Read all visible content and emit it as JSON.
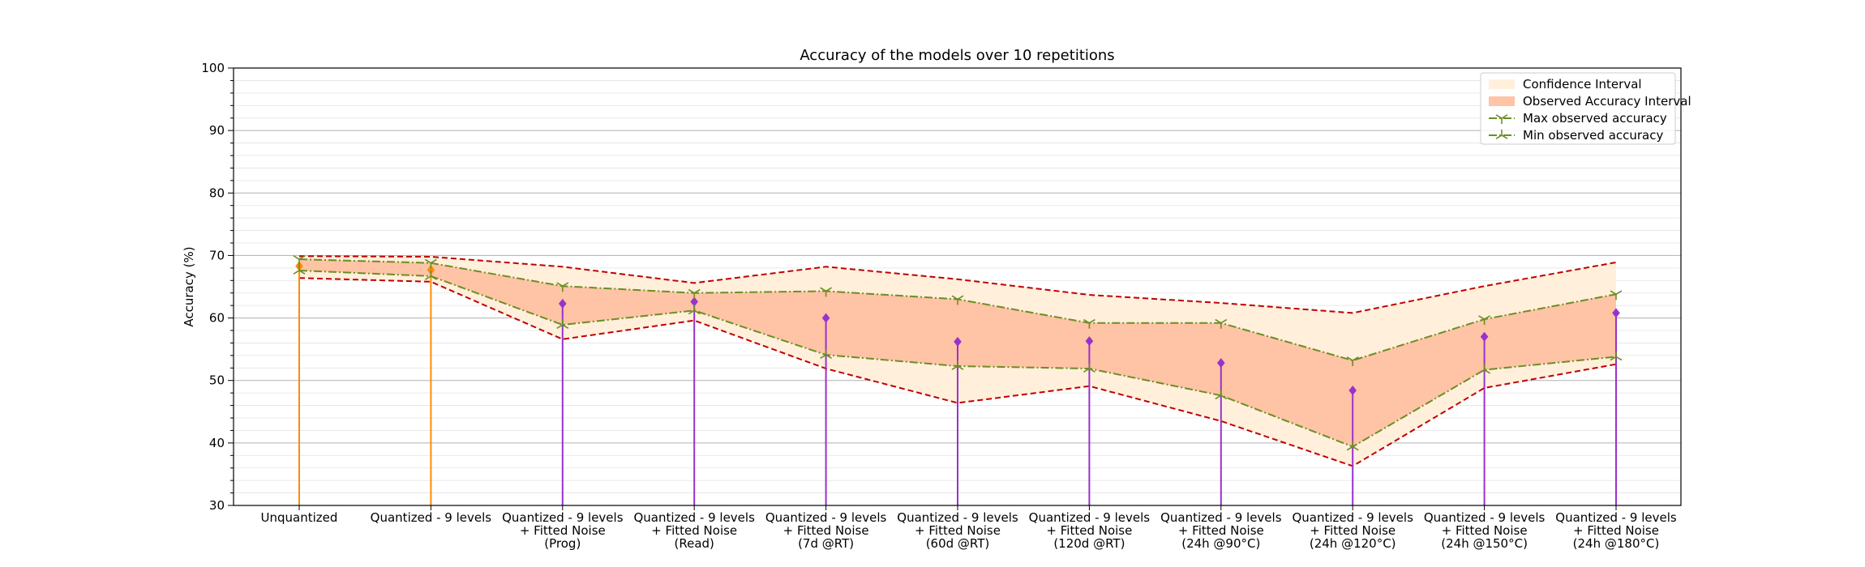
{
  "chart_data": {
    "type": "line",
    "title": "Accuracy of the models over 10 repetitions",
    "xlabel": "",
    "ylabel": "Accuracy (%)",
    "ylim": [
      30,
      100
    ],
    "yticks": [
      30,
      40,
      50,
      60,
      70,
      80,
      90,
      100
    ],
    "grid": "horizontal major and minor",
    "legend_position": "top-right",
    "categories": [
      "Unquantized",
      "Quantized - 9 levels",
      "Quantized - 9 levels\n+ Fitted Noise\n(Prog)",
      "Quantized - 9 levels\n+ Fitted Noise\n(Read)",
      "Quantized - 9 levels\n+ Fitted Noise\n(7d @RT)",
      "Quantized - 9 levels\n+ Fitted Noise\n(60d @RT)",
      "Quantized - 9 levels\n+ Fitted Noise\n(120d @RT)",
      "Quantized - 9 levels\n+ Fitted Noise\n(24h @90°C)",
      "Quantized - 9 levels\n+ Fitted Noise\n(24h @120°C)",
      "Quantized - 9 levels\n+ Fitted Noise\n(24h @150°C)",
      "Quantized - 9 levels\n+ Fitted Noise\n(24h @180°C)"
    ],
    "series": [
      {
        "name": "Confidence Interval",
        "kind": "band",
        "upper": [
          69.9,
          69.8,
          68.2,
          65.6,
          68.2,
          66.2,
          63.7,
          62.4,
          60.8,
          65.1,
          68.9
        ],
        "lower": [
          66.4,
          65.8,
          56.6,
          59.6,
          51.9,
          46.4,
          49.1,
          43.5,
          36.3,
          48.8,
          52.6
        ]
      },
      {
        "name": "Observed Accuracy Interval",
        "kind": "band",
        "upper": [
          69.4,
          68.8,
          65.1,
          64.0,
          64.3,
          63.0,
          59.2,
          59.2,
          53.2,
          59.8,
          63.8
        ],
        "lower": [
          67.6,
          66.7,
          58.9,
          61.2,
          54.1,
          52.3,
          51.9,
          47.6,
          39.4,
          51.7,
          53.8
        ]
      },
      {
        "name": "Max observed accuracy",
        "kind": "line",
        "values": [
          69.4,
          68.8,
          65.1,
          64.0,
          64.3,
          63.0,
          59.2,
          59.2,
          53.2,
          59.8,
          63.8
        ]
      },
      {
        "name": "Min observed accuracy",
        "kind": "line",
        "values": [
          67.6,
          66.7,
          58.9,
          61.2,
          54.1,
          52.3,
          51.9,
          47.6,
          39.4,
          51.7,
          53.8
        ]
      },
      {
        "kind": "stem",
        "values": [
          68.3,
          67.7,
          62.3,
          62.6,
          60.0,
          56.2,
          56.3,
          52.8,
          48.4,
          57.0,
          60.8
        ],
        "colors": [
          "#ff8c00",
          "#ff8c00",
          "#9932cc",
          "#9932cc",
          "#9932cc",
          "#9932cc",
          "#9932cc",
          "#9932cc",
          "#9932cc",
          "#9932cc",
          "#9932cc"
        ]
      }
    ]
  },
  "colors": {
    "confidence_fill": "#ffefdb",
    "observed_fill": "#ffc3a5",
    "ci_edge": "#c00000",
    "observed_edge": "#6b8e23",
    "stem_orange": "#ff8c00",
    "stem_purple": "#9932cc"
  }
}
